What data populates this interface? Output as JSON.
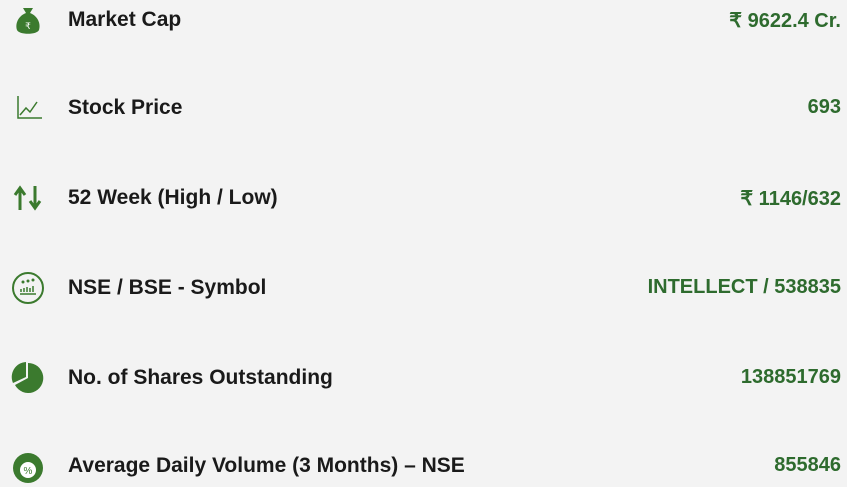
{
  "rows": [
    {
      "label": "Market Cap",
      "value": "₹ 9622.4 Cr."
    },
    {
      "label": "Stock Price",
      "value": "693"
    },
    {
      "label": "52 Week (High / Low)",
      "value": "₹ 1146/632"
    },
    {
      "label": "NSE / BSE - Symbol",
      "value": "INTELLECT / 538835"
    },
    {
      "label": "No. of Shares Outstanding",
      "value": "138851769"
    },
    {
      "label": "Average Daily Volume (3 Months) – NSE",
      "value": "855846"
    }
  ]
}
